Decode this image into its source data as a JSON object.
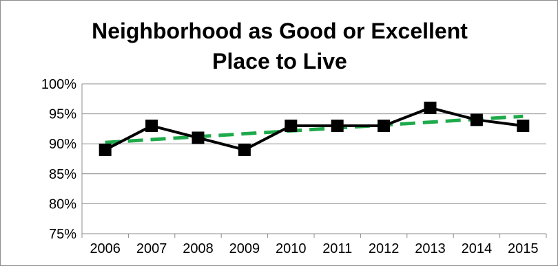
{
  "chart_data": {
    "type": "line",
    "title_lines": [
      "Neighborhood as Good or Excellent",
      "Place to Live"
    ],
    "categories": [
      "2006",
      "2007",
      "2008",
      "2009",
      "2010",
      "2011",
      "2012",
      "2013",
      "2014",
      "2015"
    ],
    "series": [
      {
        "values": [
          89,
          93,
          91,
          89,
          93,
          93,
          93,
          96,
          94,
          93
        ],
        "color": "#000000",
        "marker": "square"
      }
    ],
    "trendline": {
      "type": "linear",
      "color": "#1eaa4b",
      "style": "dashed"
    },
    "y_ticks": [
      "75%",
      "80%",
      "85%",
      "90%",
      "95%",
      "100%"
    ],
    "ylim": [
      75,
      100
    ],
    "ytick_step": 5,
    "y_unit": "%",
    "grid": "horizontal",
    "legend": "none"
  }
}
